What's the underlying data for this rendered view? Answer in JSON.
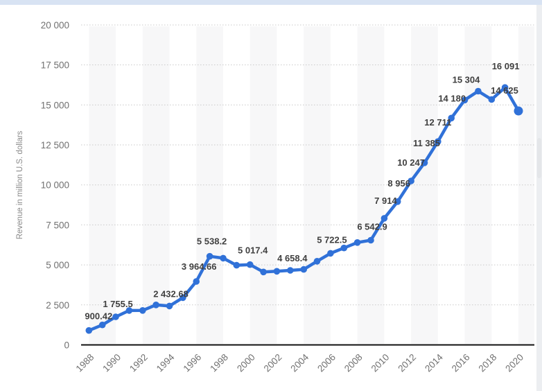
{
  "page": {
    "top_strip_color": "#d8e3f3",
    "card_bg": "#ffffff",
    "gutter_bg": "#eceef1",
    "scrollbar_color": "#e4e6e9"
  },
  "chart_data": {
    "type": "line",
    "title": "",
    "xlabel": "",
    "ylabel": "Revenue in million U.S. dollars",
    "x_range": [
      1988,
      2020
    ],
    "ylim": [
      0,
      20000
    ],
    "grid": "horizontal dotted",
    "plot_bands": "alternating 2-year vertical bands",
    "legend": "none",
    "series": [
      {
        "name": "Revenue in million U.S. dollars",
        "x": [
          1988,
          1989,
          1990,
          1991,
          1992,
          1993,
          1994,
          1995,
          1996,
          1997,
          1998,
          1999,
          2000,
          2001,
          2002,
          2003,
          2004,
          2005,
          2006,
          2007,
          2008,
          2009,
          2010,
          2011,
          2012,
          2013,
          2014,
          2015,
          2016,
          2017,
          2018,
          2019,
          2020
        ],
        "values": [
          900.42,
          1250,
          1755.5,
          2150,
          2155,
          2500,
          2432.68,
          2950,
          3964.66,
          5538.2,
          5420,
          4980,
          5017.4,
          4560,
          4600,
          4658.4,
          4720,
          5230,
          5722.5,
          6060,
          6400,
          6542.9,
          7914,
          8956,
          10247,
          11385,
          12711,
          14180,
          15304,
          15860,
          15340,
          16091,
          14625
        ]
      }
    ],
    "point_labels": [
      {
        "year": 1988,
        "text": "900.42"
      },
      {
        "year": 1990,
        "text": "1 755.5"
      },
      {
        "year": 1994,
        "text": "2 432.68"
      },
      {
        "year": 1996,
        "text": "3 964.66"
      },
      {
        "year": 1997,
        "text": "5 538.2"
      },
      {
        "year": 2000,
        "text": "5 017.4"
      },
      {
        "year": 2003,
        "text": "4 658.4"
      },
      {
        "year": 2006,
        "text": "5 722.5"
      },
      {
        "year": 2009,
        "text": "6 542.9"
      },
      {
        "year": 2010,
        "text": "7 914"
      },
      {
        "year": 2011,
        "text": "8 956"
      },
      {
        "year": 2012,
        "text": "10 247"
      },
      {
        "year": 2013,
        "text": "11 385"
      },
      {
        "year": 2014,
        "text": "12 711"
      },
      {
        "year": 2015,
        "text": "14 180"
      },
      {
        "year": 2016,
        "text": "15 304"
      },
      {
        "year": 2019,
        "text": "16 091"
      },
      {
        "year": 2020,
        "text": "14 625"
      }
    ],
    "yticks": [
      {
        "value": 0,
        "label": "0"
      },
      {
        "value": 2500,
        "label": "2 500"
      },
      {
        "value": 5000,
        "label": "5 000"
      },
      {
        "value": 7500,
        "label": "7 500"
      },
      {
        "value": 10000,
        "label": "10 000"
      },
      {
        "value": 12500,
        "label": "12 500"
      },
      {
        "value": 15000,
        "label": "15 000"
      },
      {
        "value": 17500,
        "label": "17 500"
      },
      {
        "value": 20000,
        "label": "20 000"
      }
    ],
    "xticks": [
      "1988",
      "1990",
      "1992",
      "1994",
      "1996",
      "1998",
      "2000",
      "2002",
      "2004",
      "2006",
      "2008",
      "2010",
      "2012",
      "2014",
      "2016",
      "2018",
      "2020"
    ],
    "colors": {
      "line": "#3071d8",
      "point": "#3071d8",
      "data_label": "#404040",
      "tick_label": "#707070",
      "axis_title": "#8a8a8a",
      "axis_line": "#111111",
      "gridline": "#c9c9c9",
      "band": "#f7f7f8"
    }
  }
}
